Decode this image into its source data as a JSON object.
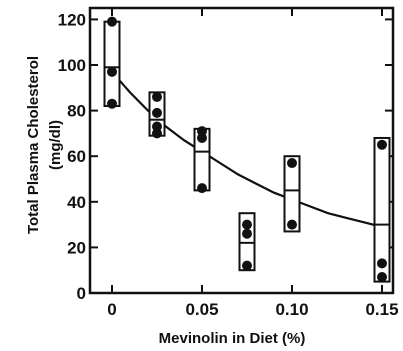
{
  "chart_data": {
    "type": "scatter",
    "xlabel": "Mevinolin in Diet (%)",
    "ylabel_line1": "Total Plasma Cholesterol",
    "ylabel_line2": "(mg/dl)",
    "xlim": [
      0,
      0.16
    ],
    "ylim": [
      0,
      125
    ],
    "x_ticks": [
      0,
      0.05,
      0.1,
      0.15
    ],
    "x_tick_labels": [
      "0",
      "0.05",
      "0.10",
      "0.15"
    ],
    "y_ticks": [
      0,
      20,
      40,
      60,
      80,
      100,
      120
    ],
    "y_tick_labels": [
      "0",
      "20",
      "40",
      "60",
      "80",
      "100",
      "120"
    ],
    "grid": false,
    "groups": [
      {
        "x": 0,
        "min": 82,
        "max": 119,
        "mean": 99,
        "points": [
          119,
          97,
          83
        ]
      },
      {
        "x": 0.025,
        "min": 69,
        "max": 88,
        "mean": 76,
        "points": [
          86,
          79,
          73,
          70
        ]
      },
      {
        "x": 0.05,
        "min": 45,
        "max": 72,
        "mean": 62,
        "points": [
          71,
          68,
          46
        ]
      },
      {
        "x": 0.075,
        "min": 10,
        "max": 35,
        "mean": 22,
        "points": [
          30,
          26,
          12
        ]
      },
      {
        "x": 0.1,
        "min": 27,
        "max": 60,
        "mean": 45,
        "points": [
          57,
          30
        ]
      },
      {
        "x": 0.15,
        "min": 5,
        "max": 68,
        "mean": 30,
        "points": [
          65,
          13,
          7
        ]
      }
    ],
    "fit_curve": {
      "x": [
        0,
        0.01,
        0.02,
        0.03,
        0.04,
        0.05,
        0.06,
        0.07,
        0.08,
        0.09,
        0.1,
        0.11,
        0.12,
        0.13,
        0.14,
        0.15
      ],
      "y": [
        97,
        88,
        80,
        73,
        67,
        62,
        57,
        52,
        48,
        44,
        41,
        38,
        35,
        33,
        31,
        29
      ]
    }
  }
}
